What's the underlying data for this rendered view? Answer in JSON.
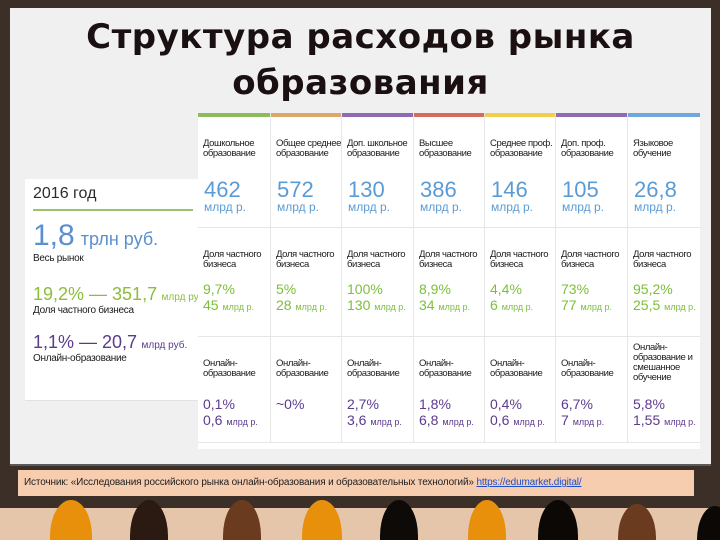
{
  "title": "Структура расходов рынка образования",
  "summary": {
    "year": "2016 год",
    "total_value": "1,8",
    "total_unit": "трлн руб.",
    "total_label": "Весь рынок",
    "private_big": "19,2% — 351,7",
    "private_small": "млрд руб.",
    "private_label": "Доля частного бизнеса",
    "online_big": "1,1% — 20,7",
    "online_small": "млрд руб.",
    "online_label": "Онлайн-образование"
  },
  "colors": {
    "header_value": "#5b9bd5",
    "private": "#7cbf3a",
    "online": "#5c3a8e",
    "column_bars": [
      "#8cbd5a",
      "#e0a868",
      "#8e6bb3",
      "#d9695a",
      "#f0cf4a",
      "#8e6bb3",
      "#6fa8dc"
    ]
  },
  "table": {
    "columns": [
      {
        "name": "Дошкольное образование",
        "value": "462",
        "unit": "млрд р.",
        "private_label": "Доля частного бизнеса",
        "private_pct": "9,7%",
        "private_amt": "45",
        "private_unit": "млрд р.",
        "online_label": "Онлайн-образование",
        "online_pct": "0,1%",
        "online_amt": "0,6",
        "online_unit": "млрд р."
      },
      {
        "name": "Общее среднее образование",
        "value": "572",
        "unit": "млрд р.",
        "private_label": "Доля частного бизнеса",
        "private_pct": "5%",
        "private_amt": "28",
        "private_unit": "млрд р.",
        "online_label": "Онлайн-образование",
        "online_pct": "~0%",
        "online_amt": "",
        "online_unit": ""
      },
      {
        "name": "Доп. школьное образование",
        "value": "130",
        "unit": "млрд р.",
        "private_label": "Доля частного бизнеса",
        "private_pct": "100%",
        "private_amt": "130",
        "private_unit": "млрд р.",
        "online_label": "Онлайн-образование",
        "online_pct": "2,7%",
        "online_amt": "3,6",
        "online_unit": "млрд р."
      },
      {
        "name": "Высшее образование",
        "value": "386",
        "unit": "млрд р.",
        "private_label": "Доля частного бизнеса",
        "private_pct": "8,9%",
        "private_amt": "34",
        "private_unit": "млрд р.",
        "online_label": "Онлайн-образование",
        "online_pct": "1,8%",
        "online_amt": "6,8",
        "online_unit": "млрд р."
      },
      {
        "name": "Среднее проф. образование",
        "value": "146",
        "unit": "млрд р.",
        "private_label": "Доля частного бизнеса",
        "private_pct": "4,4%",
        "private_amt": "6",
        "private_unit": "млрд р.",
        "online_label": "Онлайн-образование",
        "online_pct": "0,4%",
        "online_amt": "0,6",
        "online_unit": "млрд р."
      },
      {
        "name": "Доп. проф. образование",
        "value": "105",
        "unit": "млрд р.",
        "private_label": "Доля частного бизнеса",
        "private_pct": "73%",
        "private_amt": "77",
        "private_unit": "млрд р.",
        "online_label": "Онлайн-образование",
        "online_pct": "6,7%",
        "online_amt": "7",
        "online_unit": "млрд р."
      },
      {
        "name": "Языковое обучение",
        "value": "26,8",
        "unit": "млрд р.",
        "private_label": "Доля частного бизнеса",
        "private_pct": "95,2%",
        "private_amt": "25,5",
        "private_unit": "млрд р.",
        "online_label": "Онлайн-образование и смешанное обучение",
        "online_pct": "5,8%",
        "online_amt": "1,55",
        "online_unit": "млрд р."
      }
    ]
  },
  "source": {
    "text": "Источник:  «Исследования российского рынка онлайн-образования и образовательных технологий» ",
    "link": "https://edumarket.digital/"
  }
}
